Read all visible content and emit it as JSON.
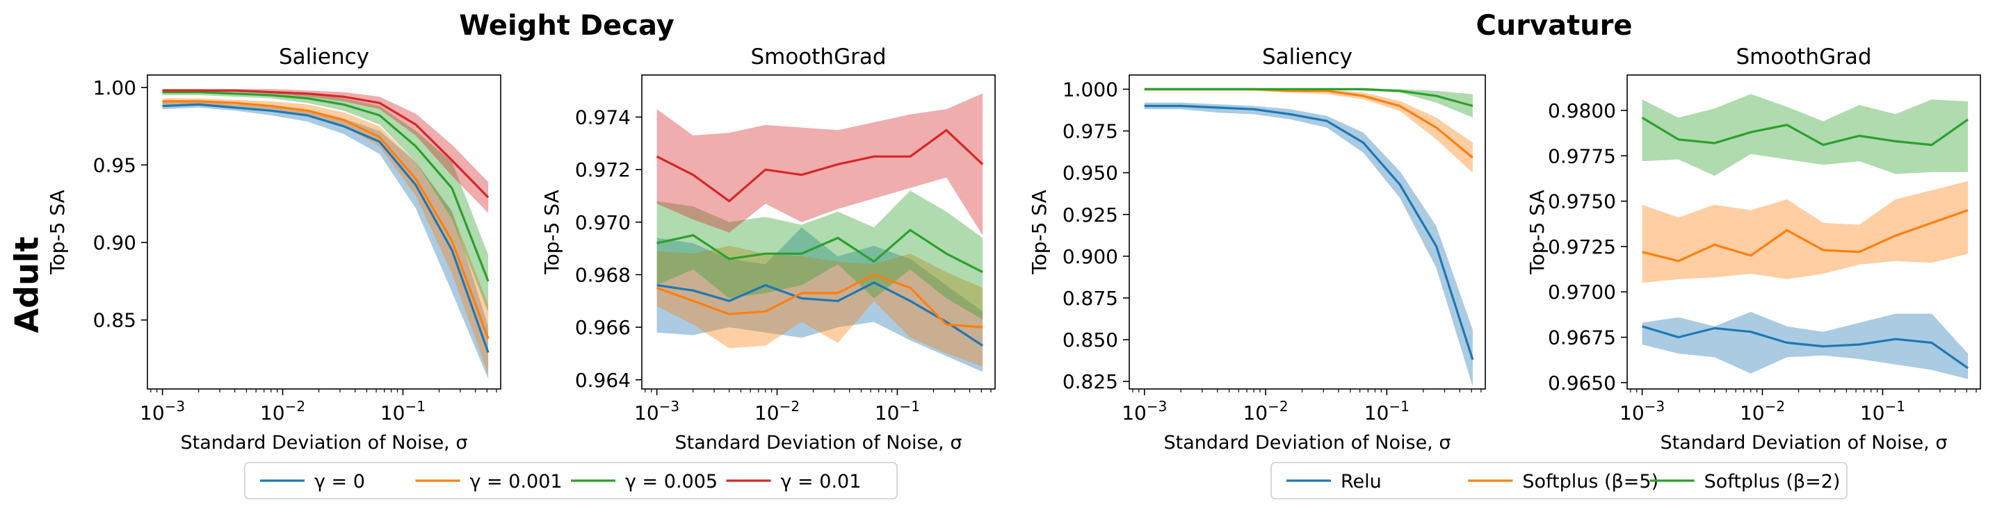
{
  "row_label": "Adult",
  "group_titles": [
    "Weight Decay",
    "Curvature"
  ],
  "colors": {
    "blue": "#1f77b4",
    "orange": "#ff7f0e",
    "green": "#2ca02c",
    "red": "#d62728"
  },
  "legends": [
    {
      "entries": [
        {
          "label": "γ = 0",
          "color": "#1f77b4"
        },
        {
          "label": "γ = 0.001",
          "color": "#ff7f0e"
        },
        {
          "label": "γ = 0.005",
          "color": "#2ca02c"
        },
        {
          "label": "γ = 0.01",
          "color": "#d62728"
        }
      ]
    },
    {
      "entries": [
        {
          "label": "Relu",
          "color": "#1f77b4"
        },
        {
          "label": "Softplus (β=5)",
          "color": "#ff7f0e"
        },
        {
          "label": "Softplus (β=2)",
          "color": "#2ca02c"
        }
      ]
    }
  ],
  "chart_data": [
    {
      "type": "line",
      "group": "Weight Decay",
      "title": "Saliency",
      "xlabel": "Standard Deviation of Noise, σ",
      "ylabel": "Top-5 SA",
      "xscale": "log",
      "xlim": [
        0.00075,
        0.65
      ],
      "ylim": [
        0.8055,
        1.008
      ],
      "xticks": [
        {
          "v": 0.001,
          "base": "10",
          "exp": "−3"
        },
        {
          "v": 0.01,
          "base": "10",
          "exp": "−2"
        },
        {
          "v": 0.1,
          "base": "10",
          "exp": "−1"
        }
      ],
      "yticks": [
        {
          "v": 0.85,
          "label": "0.85"
        },
        {
          "v": 0.9,
          "label": "0.90"
        },
        {
          "v": 0.95,
          "label": "0.95"
        },
        {
          "v": 1.0,
          "label": "1.00"
        }
      ],
      "x": [
        0.001,
        0.002,
        0.004,
        0.008,
        0.016,
        0.032,
        0.064,
        0.128,
        0.256,
        0.512
      ],
      "series": [
        {
          "color": "#1f77b4",
          "values": [
            0.988,
            0.989,
            0.987,
            0.985,
            0.982,
            0.975,
            0.965,
            0.937,
            0.895,
            0.829
          ],
          "low": [
            0.986,
            0.987,
            0.985,
            0.982,
            0.978,
            0.97,
            0.957,
            0.922,
            0.868,
            0.812
          ],
          "high": [
            0.991,
            0.991,
            0.989,
            0.988,
            0.986,
            0.98,
            0.972,
            0.952,
            0.92,
            0.846
          ]
        },
        {
          "color": "#ff7f0e",
          "values": [
            0.991,
            0.991,
            0.99,
            0.988,
            0.985,
            0.979,
            0.968,
            0.941,
            0.901,
            0.838
          ],
          "low": [
            0.989,
            0.989,
            0.988,
            0.986,
            0.982,
            0.975,
            0.962,
            0.93,
            0.88,
            0.815
          ],
          "high": [
            0.993,
            0.993,
            0.992,
            0.991,
            0.989,
            0.984,
            0.975,
            0.952,
            0.92,
            0.86
          ]
        },
        {
          "color": "#2ca02c",
          "values": [
            0.997,
            0.997,
            0.996,
            0.995,
            0.993,
            0.989,
            0.982,
            0.962,
            0.935,
            0.875
          ],
          "low": [
            0.995,
            0.995,
            0.994,
            0.993,
            0.99,
            0.985,
            0.976,
            0.952,
            0.915,
            0.855
          ],
          "high": [
            0.999,
            0.999,
            0.998,
            0.997,
            0.996,
            0.993,
            0.988,
            0.972,
            0.952,
            0.892
          ]
        },
        {
          "color": "#d62728",
          "values": [
            0.998,
            0.998,
            0.998,
            0.997,
            0.996,
            0.994,
            0.99,
            0.976,
            0.953,
            0.929
          ],
          "low": [
            0.997,
            0.997,
            0.997,
            0.996,
            0.994,
            0.991,
            0.986,
            0.969,
            0.943,
            0.919
          ],
          "high": [
            0.999,
            0.999,
            0.999,
            0.999,
            0.998,
            0.997,
            0.994,
            0.983,
            0.963,
            0.939
          ]
        }
      ]
    },
    {
      "type": "line",
      "group": "Weight Decay",
      "title": "SmoothGrad",
      "xlabel": "Standard Deviation of Noise, σ",
      "ylabel": "Top-5 SA",
      "xscale": "log",
      "xlim": [
        0.00075,
        0.65
      ],
      "ylim": [
        0.96365,
        0.9756
      ],
      "xticks": [
        {
          "v": 0.001,
          "base": "10",
          "exp": "−3"
        },
        {
          "v": 0.01,
          "base": "10",
          "exp": "−2"
        },
        {
          "v": 0.1,
          "base": "10",
          "exp": "−1"
        }
      ],
      "yticks": [
        {
          "v": 0.964,
          "label": "0.964"
        },
        {
          "v": 0.966,
          "label": "0.966"
        },
        {
          "v": 0.968,
          "label": "0.968"
        },
        {
          "v": 0.97,
          "label": "0.970"
        },
        {
          "v": 0.972,
          "label": "0.972"
        },
        {
          "v": 0.974,
          "label": "0.974"
        }
      ],
      "x": [
        0.001,
        0.002,
        0.004,
        0.008,
        0.016,
        0.032,
        0.064,
        0.128,
        0.256,
        0.512
      ],
      "series": [
        {
          "color": "#1f77b4",
          "values": [
            0.9676,
            0.9674,
            0.967,
            0.9676,
            0.9671,
            0.967,
            0.9677,
            0.967,
            0.9662,
            0.9653
          ],
          "low": [
            0.9658,
            0.9657,
            0.966,
            0.9658,
            0.9656,
            0.966,
            0.9662,
            0.9655,
            0.9649,
            0.9643
          ],
          "high": [
            0.9694,
            0.9692,
            0.9686,
            0.9684,
            0.9698,
            0.9687,
            0.9691,
            0.9686,
            0.9676,
            0.9666
          ]
        },
        {
          "color": "#ff7f0e",
          "values": [
            0.9675,
            0.967,
            0.9665,
            0.9666,
            0.9673,
            0.9673,
            0.968,
            0.9675,
            0.9661,
            0.966
          ],
          "low": [
            0.9668,
            0.9661,
            0.9652,
            0.9653,
            0.9662,
            0.9654,
            0.967,
            0.9656,
            0.965,
            0.9645
          ],
          "high": [
            0.9689,
            0.9688,
            0.9691,
            0.9688,
            0.9687,
            0.9685,
            0.9684,
            0.9688,
            0.9681,
            0.9675
          ]
        },
        {
          "color": "#2ca02c",
          "values": [
            0.9692,
            0.9695,
            0.9686,
            0.9688,
            0.9688,
            0.9694,
            0.9685,
            0.9697,
            0.9688,
            0.9681
          ],
          "low": [
            0.9676,
            0.9682,
            0.9671,
            0.9673,
            0.9676,
            0.9684,
            0.9671,
            0.9682,
            0.9671,
            0.9663
          ],
          "high": [
            0.9708,
            0.9706,
            0.97,
            0.9702,
            0.9699,
            0.9704,
            0.9698,
            0.9712,
            0.9704,
            0.9694
          ]
        },
        {
          "color": "#d62728",
          "values": [
            0.9725,
            0.9718,
            0.9708,
            0.972,
            0.9718,
            0.9722,
            0.9725,
            0.9725,
            0.9735,
            0.9722
          ],
          "low": [
            0.9707,
            0.9701,
            0.9696,
            0.9707,
            0.97,
            0.9705,
            0.9709,
            0.9713,
            0.9717,
            0.9695
          ],
          "high": [
            0.9743,
            0.9733,
            0.9734,
            0.9737,
            0.9736,
            0.9735,
            0.9738,
            0.9741,
            0.9743,
            0.9749
          ]
        }
      ]
    },
    {
      "type": "line",
      "group": "Curvature",
      "title": "Saliency",
      "xlabel": "Standard Deviation of Noise, σ",
      "ylabel": "Top-5 SA",
      "xscale": "log",
      "xlim": [
        0.00075,
        0.65
      ],
      "ylim": [
        0.8205,
        1.0085
      ],
      "xticks": [
        {
          "v": 0.001,
          "base": "10",
          "exp": "−3"
        },
        {
          "v": 0.01,
          "base": "10",
          "exp": "−2"
        },
        {
          "v": 0.1,
          "base": "10",
          "exp": "−1"
        }
      ],
      "yticks": [
        {
          "v": 0.825,
          "label": "0.825"
        },
        {
          "v": 0.85,
          "label": "0.850"
        },
        {
          "v": 0.875,
          "label": "0.875"
        },
        {
          "v": 0.9,
          "label": "0.900"
        },
        {
          "v": 0.925,
          "label": "0.925"
        },
        {
          "v": 0.95,
          "label": "0.950"
        },
        {
          "v": 0.975,
          "label": "0.975"
        },
        {
          "v": 1.0,
          "label": "1.000"
        }
      ],
      "x": [
        0.001,
        0.002,
        0.004,
        0.008,
        0.016,
        0.032,
        0.064,
        0.128,
        0.256,
        0.512
      ],
      "series": [
        {
          "color": "#1f77b4",
          "values": [
            0.99,
            0.99,
            0.989,
            0.988,
            0.985,
            0.981,
            0.968,
            0.943,
            0.906,
            0.838
          ],
          "low": [
            0.988,
            0.988,
            0.986,
            0.985,
            0.982,
            0.977,
            0.962,
            0.935,
            0.893,
            0.822
          ],
          "high": [
            0.992,
            0.992,
            0.991,
            0.99,
            0.988,
            0.984,
            0.974,
            0.951,
            0.918,
            0.856
          ]
        },
        {
          "color": "#ff7f0e",
          "values": [
            1.0,
            1.0,
            1.0,
            1.0,
            0.999,
            0.999,
            0.996,
            0.99,
            0.977,
            0.959
          ],
          "low": [
            0.999,
            0.999,
            0.999,
            0.999,
            0.998,
            0.997,
            0.994,
            0.987,
            0.97,
            0.95
          ],
          "high": [
            1.0,
            1.0,
            1.0,
            1.0,
            1.0,
            1.0,
            0.998,
            0.993,
            0.983,
            0.968
          ]
        },
        {
          "color": "#2ca02c",
          "values": [
            1.0,
            1.0,
            1.0,
            1.0,
            1.0,
            1.0,
            1.0,
            0.999,
            0.996,
            0.99
          ],
          "low": [
            1.0,
            1.0,
            1.0,
            1.0,
            1.0,
            1.0,
            0.999,
            0.998,
            0.992,
            0.983
          ],
          "high": [
            1.0,
            1.0,
            1.0,
            1.0,
            1.0,
            1.0,
            1.0,
            1.0,
            0.999,
            0.997
          ]
        }
      ]
    },
    {
      "type": "line",
      "group": "Curvature",
      "title": "SmoothGrad",
      "xlabel": "Standard Deviation of Noise, σ",
      "ylabel": "Top-5 SA",
      "xscale": "log",
      "xlim": [
        0.00075,
        0.65
      ],
      "ylim": [
        0.96465,
        0.98195
      ],
      "xticks": [
        {
          "v": 0.001,
          "base": "10",
          "exp": "−3"
        },
        {
          "v": 0.01,
          "base": "10",
          "exp": "−2"
        },
        {
          "v": 0.1,
          "base": "10",
          "exp": "−1"
        }
      ],
      "yticks": [
        {
          "v": 0.965,
          "label": "0.9650"
        },
        {
          "v": 0.9675,
          "label": "0.9675"
        },
        {
          "v": 0.97,
          "label": "0.9700"
        },
        {
          "v": 0.9725,
          "label": "0.9725"
        },
        {
          "v": 0.975,
          "label": "0.9750"
        },
        {
          "v": 0.9775,
          "label": "0.9775"
        },
        {
          "v": 0.98,
          "label": "0.9800"
        }
      ],
      "x": [
        0.001,
        0.002,
        0.004,
        0.008,
        0.016,
        0.032,
        0.064,
        0.128,
        0.256,
        0.512
      ],
      "series": [
        {
          "color": "#1f77b4",
          "values": [
            0.9681,
            0.9675,
            0.968,
            0.9678,
            0.9672,
            0.967,
            0.9671,
            0.9674,
            0.9672,
            0.9658
          ],
          "low": [
            0.9671,
            0.9666,
            0.9664,
            0.9655,
            0.9664,
            0.9665,
            0.9663,
            0.966,
            0.9657,
            0.9652
          ],
          "high": [
            0.9683,
            0.9686,
            0.9681,
            0.9689,
            0.9681,
            0.9678,
            0.9683,
            0.9688,
            0.9688,
            0.9666
          ]
        },
        {
          "color": "#ff7f0e",
          "values": [
            0.9722,
            0.9717,
            0.9726,
            0.972,
            0.9734,
            0.9723,
            0.9722,
            0.9731,
            0.9738,
            0.9745
          ],
          "low": [
            0.9705,
            0.9707,
            0.9708,
            0.971,
            0.9707,
            0.971,
            0.9715,
            0.9717,
            0.9716,
            0.9721
          ],
          "high": [
            0.9748,
            0.9741,
            0.9748,
            0.9745,
            0.9751,
            0.9738,
            0.9737,
            0.9751,
            0.9756,
            0.9761
          ]
        },
        {
          "color": "#2ca02c",
          "values": [
            0.9796,
            0.9784,
            0.9782,
            0.9788,
            0.9792,
            0.9781,
            0.9786,
            0.9783,
            0.9781,
            0.9795
          ],
          "low": [
            0.9772,
            0.9773,
            0.9764,
            0.9776,
            0.9773,
            0.977,
            0.9772,
            0.9765,
            0.9766,
            0.9766
          ],
          "high": [
            0.9806,
            0.9796,
            0.9801,
            0.9809,
            0.9802,
            0.9794,
            0.9803,
            0.9798,
            0.9806,
            0.9805
          ]
        }
      ]
    }
  ]
}
